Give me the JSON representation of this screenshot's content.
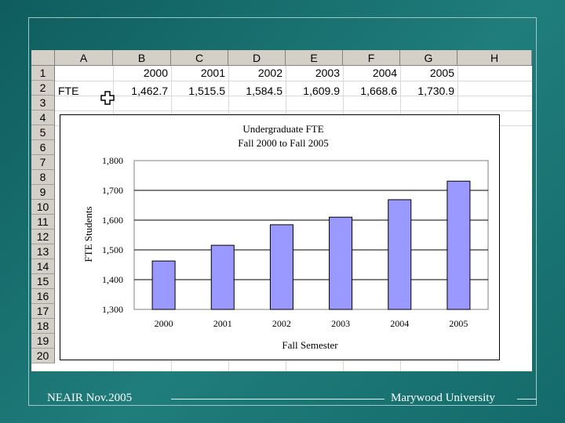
{
  "spreadsheet": {
    "columns": [
      "A",
      "B",
      "C",
      "D",
      "E",
      "F",
      "G",
      "H"
    ],
    "rows": [
      "1",
      "2",
      "3",
      "4",
      "5",
      "6",
      "7",
      "8",
      "9",
      "10",
      "11",
      "12",
      "13",
      "14",
      "15",
      "16",
      "17",
      "18",
      "19",
      "20"
    ],
    "row1": {
      "B": "2000",
      "C": "2001",
      "D": "2002",
      "E": "2003",
      "F": "2004",
      "G": "2005"
    },
    "row2": {
      "A": "FTE",
      "B": "1,462.7",
      "C": "1,515.5",
      "D": "1,584.5",
      "E": "1,609.9",
      "F": "1,668.6",
      "G": "1,730.9"
    }
  },
  "chart_data": {
    "type": "bar",
    "title": "Undergraduate FTE",
    "subtitle": "Fall 2000 to Fall 2005",
    "xlabel": "Fall Semester",
    "ylabel": "FTE Students",
    "categories": [
      "2000",
      "2001",
      "2002",
      "2003",
      "2004",
      "2005"
    ],
    "values": [
      1462.7,
      1515.5,
      1584.5,
      1609.9,
      1668.6,
      1730.9
    ],
    "ylim": [
      1300,
      1800
    ],
    "yticks": [
      1300,
      1400,
      1500,
      1600,
      1700,
      1800
    ],
    "ytick_labels": [
      "1,300",
      "1,400",
      "1,500",
      "1,600",
      "1,700",
      "1,800"
    ],
    "bar_color": "#9999ff",
    "grid": true
  },
  "footer": {
    "left": "NEAIR Nov.2005",
    "right": "Marywood University"
  },
  "colors": {
    "background": "#146a6a",
    "header_gray": "#d4d0c8"
  }
}
